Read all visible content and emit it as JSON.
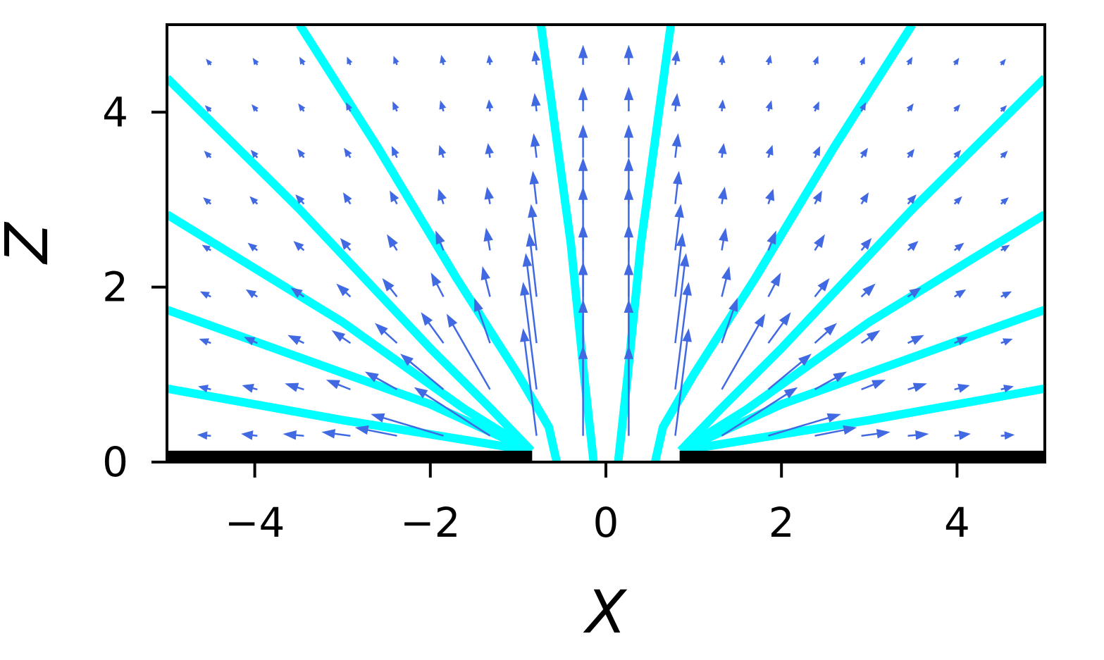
{
  "chart_data": {
    "type": "quiver",
    "xlabel": "X",
    "ylabel": "Z",
    "xlim": [
      -5,
      5
    ],
    "ylim": [
      0,
      5
    ],
    "xticks": [
      {
        "value": -4,
        "label": "−4"
      },
      {
        "value": -2,
        "label": "−2"
      },
      0,
      2,
      4
    ],
    "yticks": [
      0,
      2,
      4
    ],
    "plates": {
      "color": "#000000",
      "height": 0.13,
      "x": [
        [
          -5,
          -0.84
        ],
        [
          0.84,
          5
        ]
      ]
    },
    "streamlines": [
      {
        "color": "#00ffff",
        "x": [
          -0.85,
          -3,
          -5
        ],
        "z": [
          0.13,
          0.48,
          0.84
        ]
      },
      {
        "color": "#00ffff",
        "x": [
          -0.85,
          -2,
          -3.5,
          -5
        ],
        "z": [
          0.13,
          0.66,
          1.2,
          1.74
        ]
      },
      {
        "color": "#00ffff",
        "x": [
          -0.85,
          -1.6,
          -3,
          -5
        ],
        "z": [
          0.13,
          0.6,
          1.6,
          2.83
        ]
      },
      {
        "color": "#00ffff",
        "x": [
          -0.85,
          -1.3,
          -2,
          -3.5,
          -5
        ],
        "z": [
          0.13,
          0.6,
          1.3,
          2.9,
          4.39
        ]
      },
      {
        "color": "#00ffff",
        "x": [
          -0.56,
          -0.65,
          -1,
          -1.7,
          -2.6,
          -3.49
        ],
        "z": [
          0,
          0.4,
          1,
          2.1,
          3.6,
          5
        ]
      },
      {
        "color": "#00ffff",
        "x": [
          -0.14,
          -0.25,
          -0.4,
          -0.74
        ],
        "z": [
          0,
          1,
          2.5,
          5
        ]
      },
      {
        "color": "#00ffff",
        "x": [
          0.14,
          0.25,
          0.4,
          0.74
        ],
        "z": [
          0,
          1,
          2.5,
          5
        ]
      },
      {
        "color": "#00ffff",
        "x": [
          0.56,
          0.65,
          1,
          1.7,
          2.6,
          3.49
        ],
        "z": [
          0,
          0.4,
          1,
          2.1,
          3.6,
          5
        ]
      },
      {
        "color": "#00ffff",
        "x": [
          0.85,
          1.3,
          2,
          3.5,
          5
        ],
        "z": [
          0.13,
          0.6,
          1.3,
          2.9,
          4.39
        ]
      },
      {
        "color": "#00ffff",
        "x": [
          0.85,
          1.6,
          3,
          5
        ],
        "z": [
          0.13,
          0.6,
          1.6,
          2.83
        ]
      },
      {
        "color": "#00ffff",
        "x": [
          0.85,
          2,
          3.5,
          5
        ],
        "z": [
          0.13,
          0.66,
          1.2,
          1.74
        ]
      },
      {
        "color": "#00ffff",
        "x": [
          0.85,
          3,
          5
        ],
        "z": [
          0.13,
          0.48,
          0.84
        ]
      }
    ],
    "quiver": {
      "color": "#4169e1",
      "x": [
        -4.5,
        -3.97,
        -3.44,
        -2.91,
        -2.38,
        -1.85,
        -1.32,
        -0.79,
        -0.26,
        0.26,
        0.79,
        1.32,
        1.85,
        2.38,
        2.91,
        3.44,
        3.97,
        4.5
      ],
      "z": [
        0.3,
        0.83,
        1.36,
        1.89,
        2.42,
        2.95,
        3.48,
        4.01,
        4.54
      ],
      "u": [
        [
          -0.13,
          -0.12,
          -0.11,
          -0.1,
          -0.08,
          -0.07,
          -0.06,
          -0.05,
          -0.04
        ],
        [
          -0.16,
          -0.15,
          -0.13,
          -0.11,
          -0.09,
          -0.07,
          -0.06,
          -0.05,
          -0.04
        ],
        [
          -0.21,
          -0.19,
          -0.16,
          -0.13,
          -0.1,
          -0.08,
          -0.06,
          -0.05,
          -0.04
        ],
        [
          -0.3,
          -0.25,
          -0.19,
          -0.14,
          -0.1,
          -0.07,
          -0.06,
          -0.04,
          -0.03
        ],
        [
          -0.45,
          -0.34,
          -0.23,
          -0.15,
          -0.1,
          -0.07,
          -0.05,
          -0.04,
          -0.03
        ],
        [
          -0.8,
          -0.47,
          -0.24,
          -0.13,
          -0.08,
          -0.05,
          -0.04,
          -0.03,
          -0.02
        ],
        [
          -0.84,
          -0.48,
          -0.17,
          -0.08,
          -0.04,
          -0.03,
          -0.02,
          -0.01,
          -0.01
        ],
        [
          -0.15,
          -0.15,
          -0.12,
          -0.08,
          -0.06,
          -0.04,
          -0.03,
          -0.02,
          -0.02
        ],
        [
          0,
          0,
          0,
          0,
          0,
          0,
          0,
          0,
          0
        ],
        [
          0,
          0,
          0,
          0,
          0,
          0,
          0,
          0,
          0
        ],
        [
          0.15,
          0.15,
          0.12,
          0.08,
          0.06,
          0.04,
          0.03,
          0.02,
          0.02
        ],
        [
          0.84,
          0.48,
          0.17,
          0.08,
          0.04,
          0.03,
          0.02,
          0.01,
          0.01
        ],
        [
          0.8,
          0.47,
          0.24,
          0.13,
          0.08,
          0.05,
          0.04,
          0.03,
          0.02
        ],
        [
          0.45,
          0.34,
          0.23,
          0.15,
          0.1,
          0.07,
          0.05,
          0.04,
          0.03
        ],
        [
          0.3,
          0.25,
          0.19,
          0.14,
          0.1,
          0.07,
          0.06,
          0.04,
          0.03
        ],
        [
          0.21,
          0.19,
          0.16,
          0.13,
          0.1,
          0.08,
          0.06,
          0.05,
          0.04
        ],
        [
          0.16,
          0.15,
          0.13,
          0.11,
          0.09,
          0.07,
          0.06,
          0.05,
          0.04
        ],
        [
          0.13,
          0.12,
          0.11,
          0.1,
          0.08,
          0.07,
          0.06,
          0.05,
          0.04
        ]
      ],
      "v": [
        [
          0.01,
          0.03,
          0.04,
          0.05,
          0.05,
          0.06,
          0.06,
          0.05,
          0.05
        ],
        [
          0.02,
          0.04,
          0.06,
          0.07,
          0.07,
          0.07,
          0.07,
          0.06,
          0.06
        ],
        [
          0.02,
          0.06,
          0.08,
          0.09,
          0.09,
          0.09,
          0.08,
          0.07,
          0.07
        ],
        [
          0.04,
          0.1,
          0.13,
          0.13,
          0.12,
          0.11,
          0.09,
          0.08,
          0.07
        ],
        [
          0.09,
          0.19,
          0.21,
          0.19,
          0.16,
          0.13,
          0.11,
          0.09,
          0.08
        ],
        [
          0.24,
          0.39,
          0.33,
          0.25,
          0.2,
          0.15,
          0.12,
          0.1,
          0.09
        ],
        [
          0.54,
          0.84,
          0.49,
          0.32,
          0.23,
          0.17,
          0.14,
          0.11,
          0.09
        ],
        [
          1.2,
          1.2,
          1.0,
          0.7,
          0.5,
          0.35,
          0.25,
          0.18,
          0.14
        ],
        [
          1.0,
          1.0,
          0.9,
          0.8,
          0.7,
          0.5,
          0.35,
          0.25,
          0.2
        ],
        [
          1.0,
          1.0,
          0.9,
          0.8,
          0.7,
          0.5,
          0.35,
          0.25,
          0.2
        ],
        [
          1.2,
          1.2,
          1.0,
          0.7,
          0.5,
          0.35,
          0.25,
          0.18,
          0.14
        ],
        [
          0.54,
          0.84,
          0.49,
          0.32,
          0.23,
          0.17,
          0.14,
          0.11,
          0.09
        ],
        [
          0.24,
          0.39,
          0.33,
          0.25,
          0.2,
          0.15,
          0.12,
          0.1,
          0.09
        ],
        [
          0.09,
          0.19,
          0.21,
          0.19,
          0.16,
          0.13,
          0.11,
          0.09,
          0.08
        ],
        [
          0.04,
          0.1,
          0.13,
          0.13,
          0.12,
          0.11,
          0.09,
          0.08,
          0.07
        ],
        [
          0.02,
          0.06,
          0.08,
          0.09,
          0.09,
          0.09,
          0.08,
          0.07,
          0.07
        ],
        [
          0.02,
          0.04,
          0.06,
          0.07,
          0.07,
          0.07,
          0.07,
          0.06,
          0.06
        ],
        [
          0.01,
          0.03,
          0.04,
          0.05,
          0.05,
          0.06,
          0.06,
          0.05,
          0.05
        ]
      ]
    }
  }
}
